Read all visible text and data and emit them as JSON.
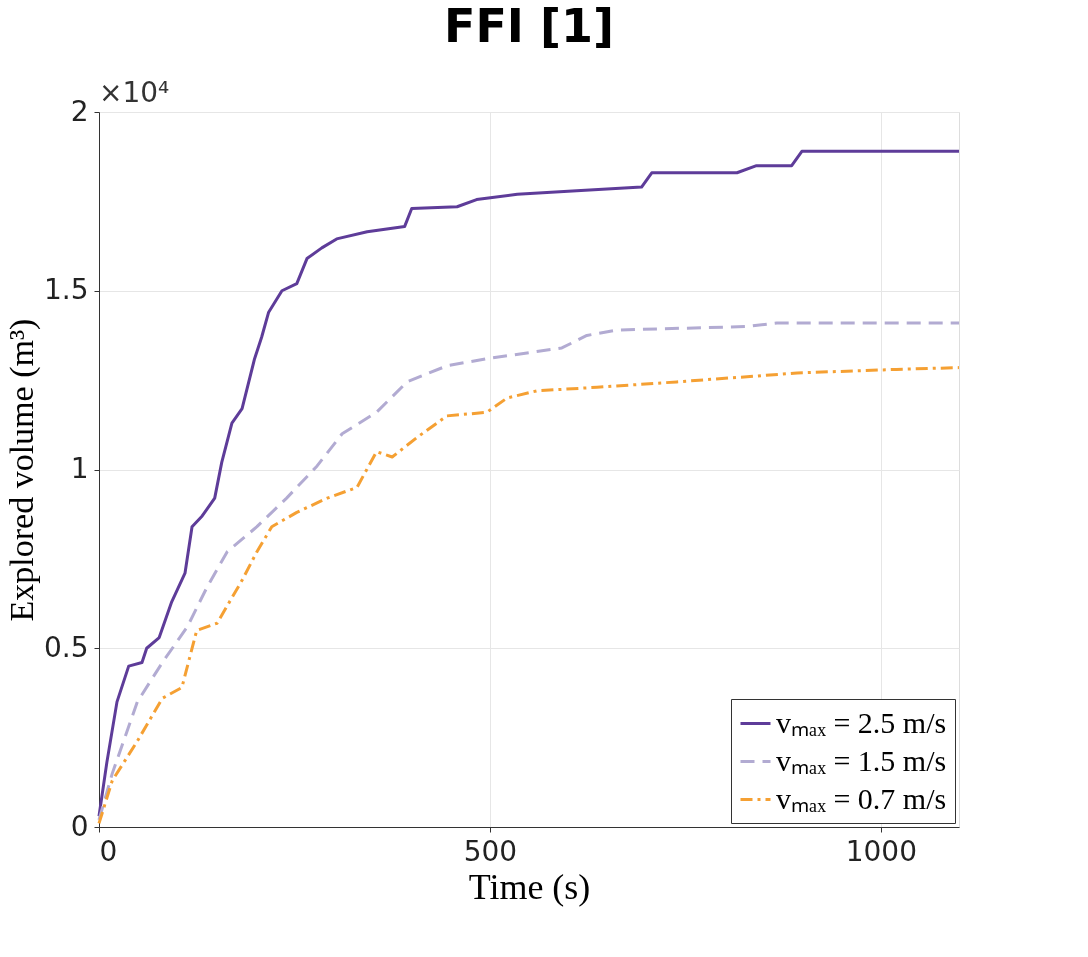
{
  "chart_data": {
    "type": "line",
    "title": "FFI [1]",
    "xlabel": "Time (s)",
    "ylabel": "Explored volume (m³)",
    "annotations": [
      "×10⁴"
    ],
    "xlim": [
      0,
      1100
    ],
    "xticks": [
      0,
      500,
      {
        "value": 1000,
        "label": "1000"
      }
    ],
    "ylim": [
      0,
      2
    ],
    "yticks": [
      {
        "value": 0,
        "label": "0"
      },
      0.5,
      {
        "value": 1,
        "label": "1"
      },
      1.5,
      {
        "value": 2,
        "label": "2"
      }
    ],
    "grid": true,
    "legend": "bottom right",
    "marker": "none",
    "series": [
      {
        "name": "vₘₐₓ = 2.5 m/s",
        "color": "#5e3c99",
        "line_style": "solid",
        "x": [
          0,
          10,
          23,
          38,
          55,
          61,
          77,
          93,
          110,
          119,
          132,
          148,
          157,
          170,
          183,
          199,
          208,
          217,
          234,
          253,
          266,
          285,
          304,
          343,
          391,
          400,
          458,
          483,
          535,
          611,
          694,
          707,
          816,
          841,
          886,
          899,
          1100
        ],
        "values": [
          0.03,
          0.18,
          0.35,
          0.45,
          0.46,
          0.5,
          0.53,
          0.63,
          0.71,
          0.84,
          0.87,
          0.92,
          1.02,
          1.13,
          1.17,
          1.31,
          1.37,
          1.44,
          1.5,
          1.52,
          1.59,
          1.62,
          1.645,
          1.665,
          1.68,
          1.73,
          1.735,
          1.755,
          1.77,
          1.78,
          1.79,
          1.83,
          1.83,
          1.85,
          1.85,
          1.89,
          1.89
        ]
      },
      {
        "name": "vₘₐₓ = 1.5 m/s",
        "color": "#b2abd2",
        "line_style": "dashed",
        "x": [
          0,
          17,
          49,
          81,
          113,
          138,
          164,
          202,
          240,
          279,
          311,
          355,
          394,
          445,
          496,
          560,
          592,
          624,
          662,
          829,
          867,
          1100
        ],
        "values": [
          0.02,
          0.15,
          0.35,
          0.46,
          0.56,
          0.67,
          0.77,
          0.84,
          0.92,
          1.01,
          1.1,
          1.16,
          1.245,
          1.29,
          1.31,
          1.33,
          1.34,
          1.375,
          1.39,
          1.4,
          1.41,
          1.41
        ]
      },
      {
        "name": "vₘₐₓ = 0.7 m/s",
        "color": "#f5a033",
        "line_style": "dashdot",
        "x": [
          0,
          17,
          49,
          81,
          106,
          125,
          151,
          183,
          202,
          221,
          253,
          292,
          330,
          355,
          375,
          407,
          445,
          496,
          522,
          560,
          637,
          739,
          893,
          1020,
          1100
        ],
        "values": [
          0.01,
          0.13,
          0.24,
          0.36,
          0.39,
          0.55,
          0.57,
          0.69,
          0.77,
          0.84,
          0.88,
          0.92,
          0.95,
          1.05,
          1.035,
          1.09,
          1.15,
          1.16,
          1.2,
          1.22,
          1.23,
          1.245,
          1.27,
          1.28,
          1.285
        ]
      }
    ]
  }
}
